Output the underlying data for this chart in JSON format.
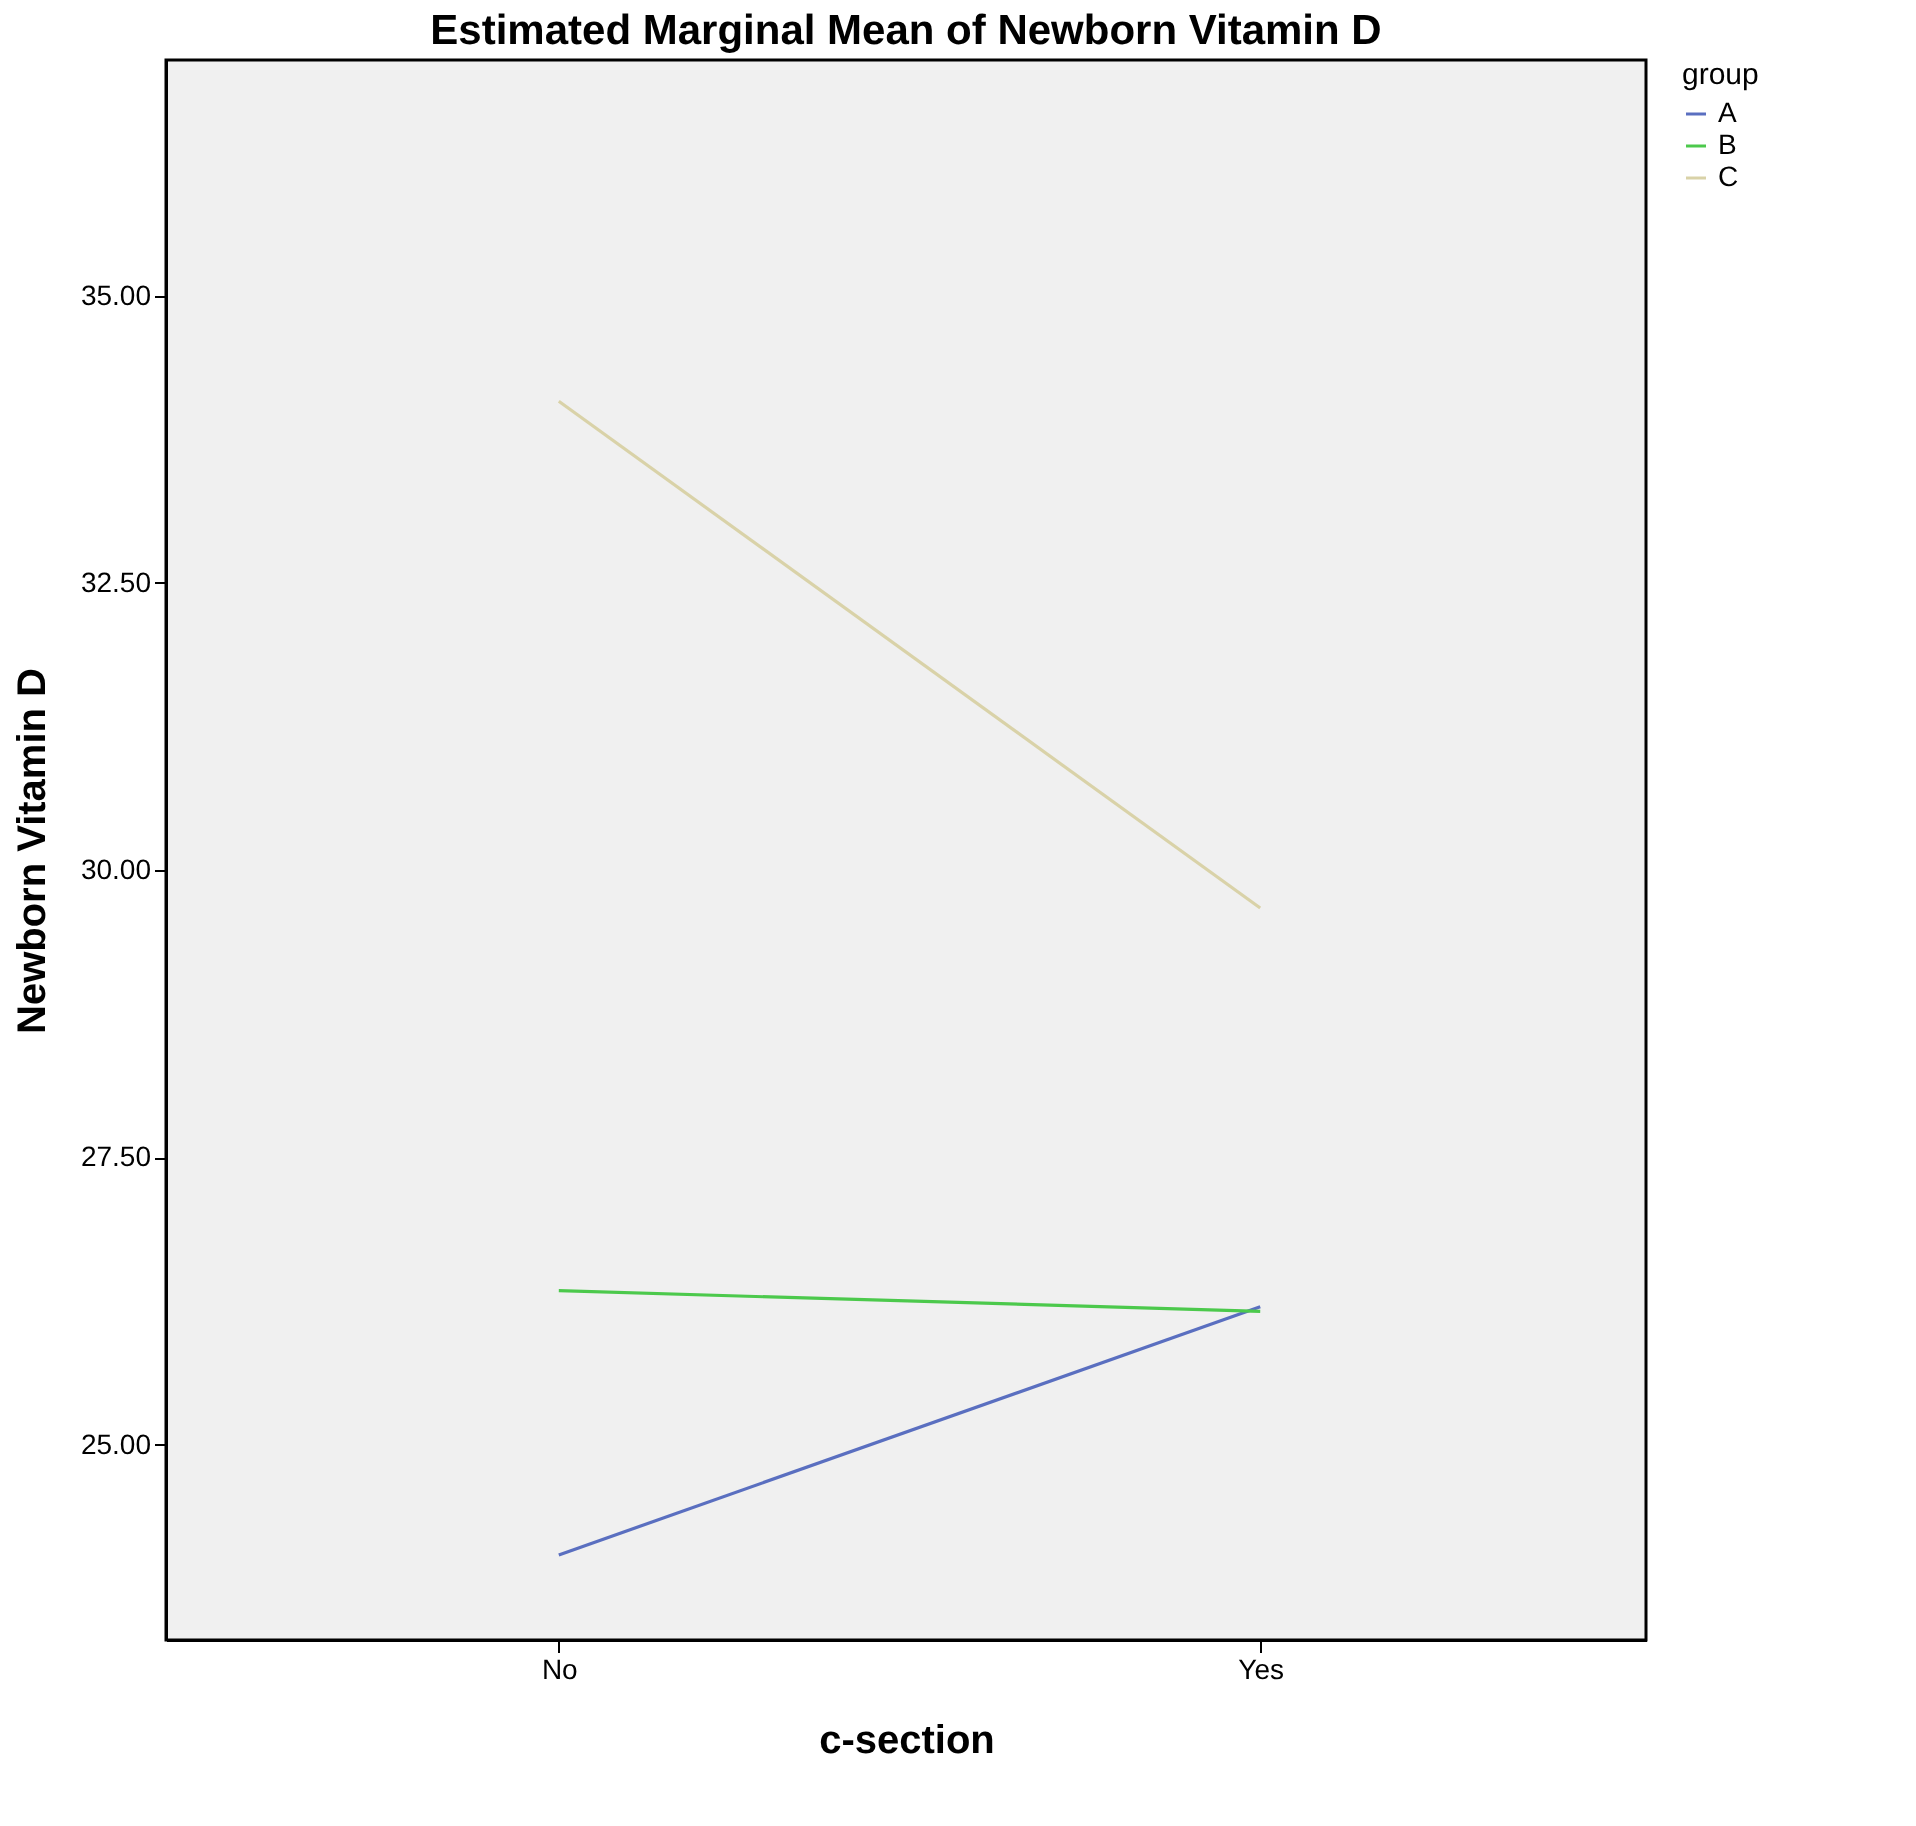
{
  "chart_data": {
    "type": "line",
    "title": "Estimated Marginal Mean of Newborn Vitamin D",
    "xlabel": "c-section",
    "ylabel": "Newborn Vitamin D",
    "legend_title": "group",
    "categories": [
      "No",
      "Yes"
    ],
    "series": [
      {
        "name": "A",
        "color": "#5a6fc0",
        "values": [
          24.04,
          26.2
        ]
      },
      {
        "name": "B",
        "color": "#4cc94c",
        "values": [
          26.34,
          26.16
        ]
      },
      {
        "name": "C",
        "color": "#d9d2a8",
        "values": [
          34.08,
          29.67
        ]
      }
    ],
    "ylim": [
      23.3,
      37.05
    ],
    "yticks": [
      {
        "value": 25,
        "label": "25.00"
      },
      {
        "value": 27.5,
        "label": "27.50"
      },
      {
        "value": 30,
        "label": "30.00"
      },
      {
        "value": 32.5,
        "label": "32.50"
      },
      {
        "value": 35,
        "label": "35.00"
      }
    ],
    "grid": false,
    "legend": "top right",
    "marker": "none",
    "line_style": "solid"
  }
}
